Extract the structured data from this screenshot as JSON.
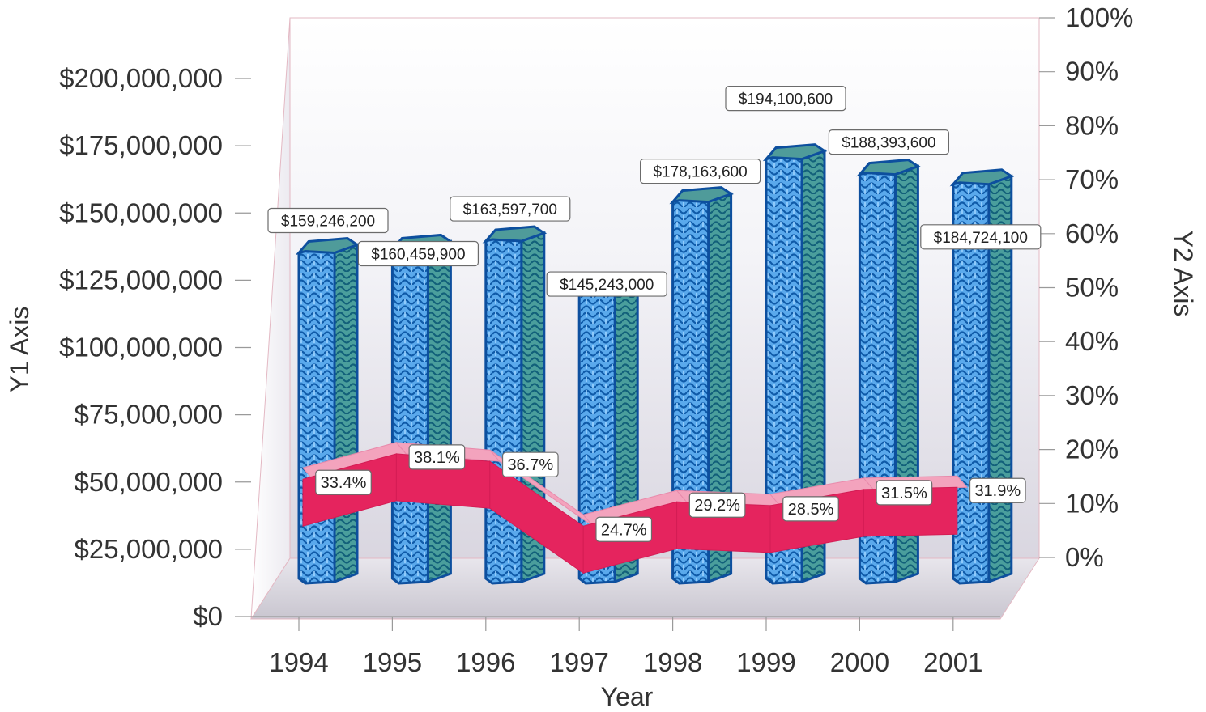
{
  "chart_data": {
    "type": "bar",
    "categories": [
      "1994",
      "1995",
      "1996",
      "1997",
      "1998",
      "1999",
      "2000",
      "2001"
    ],
    "series": [
      {
        "values": [
          159246200,
          160459900,
          163597700,
          145243000,
          178163600,
          194100600,
          188393600,
          184724100
        ],
        "labels": [
          "$159,246,200",
          "$160,459,900",
          "$163,597,700",
          "$145,243,000",
          "$178,163,600",
          "$194,100,600",
          "$188,393,600",
          "$184,724,100"
        ],
        "axis": "y1",
        "render": "cylinder-bar",
        "color": "#1f74c7"
      },
      {
        "values": [
          33.4,
          38.1,
          36.7,
          24.7,
          29.2,
          28.5,
          31.5,
          31.9
        ],
        "labels": [
          "33.4%",
          "38.1%",
          "36.7%",
          "24.7%",
          "29.2%",
          "28.5%",
          "31.5%",
          "31.9%"
        ],
        "axis": "y2",
        "render": "ribbon-line",
        "color": "#e5245e"
      }
    ],
    "xlabel": "Year",
    "ylabel": "Y1 Axis",
    "y2label": "Y2 Axis",
    "ylim": [
      0,
      200000000
    ],
    "y2lim": [
      0,
      100
    ],
    "y1_ticks": [
      "$0",
      "$25,000,000",
      "$50,000,000",
      "$75,000,000",
      "$100,000,000",
      "$125,000,000",
      "$150,000,000",
      "$175,000,000",
      "$200,000,000"
    ],
    "y2_ticks": [
      "0%",
      "10%",
      "20%",
      "30%",
      "40%",
      "50%",
      "60%",
      "70%",
      "80%",
      "90%",
      "100%"
    ],
    "grid": false,
    "legend": "none",
    "style": "3d"
  }
}
